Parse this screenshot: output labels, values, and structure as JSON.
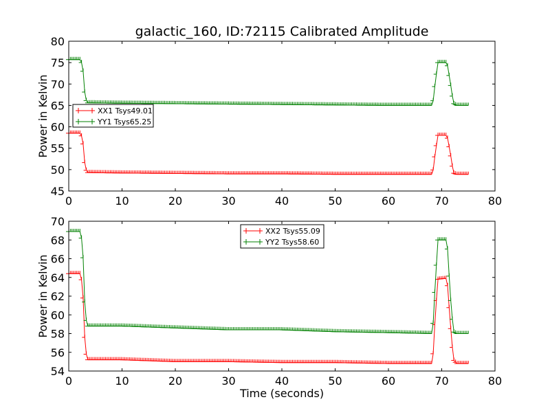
{
  "chart_data": [
    {
      "type": "line",
      "title": "galactic_160, ID:72115 Calibrated Amplitude",
      "xlabel": "",
      "ylabel": "Power in Kelvin",
      "xlim": [
        0,
        80
      ],
      "ylim": [
        45,
        80
      ],
      "xticks": [
        0,
        10,
        20,
        30,
        40,
        50,
        60,
        70,
        80
      ],
      "yticks": [
        45,
        50,
        55,
        60,
        65,
        70,
        75,
        80
      ],
      "legend_position": "center-left",
      "grid": false,
      "series": [
        {
          "name": "XX1 Tsys49.01",
          "color": "#ff0000",
          "points": [
            [
              0,
              58.5
            ],
            [
              2.3,
              58.5
            ],
            [
              2.7,
              56
            ],
            [
              3.1,
              50.2
            ],
            [
              3.6,
              49.3
            ],
            [
              10,
              49.2
            ],
            [
              20,
              49.1
            ],
            [
              30,
              49.0
            ],
            [
              40,
              49.0
            ],
            [
              50,
              48.9
            ],
            [
              60,
              48.9
            ],
            [
              68.3,
              48.9
            ],
            [
              68.8,
              54
            ],
            [
              69.3,
              58
            ],
            [
              71,
              58
            ],
            [
              71.6,
              54
            ],
            [
              72.2,
              49.2
            ],
            [
              72.8,
              48.9
            ],
            [
              75,
              48.9
            ]
          ]
        },
        {
          "name": "YY1 Tsys65.25",
          "color": "#008000",
          "points": [
            [
              0,
              75.7
            ],
            [
              2.3,
              75.7
            ],
            [
              2.7,
              73
            ],
            [
              3.1,
              66.5
            ],
            [
              3.6,
              65.6
            ],
            [
              10,
              65.5
            ],
            [
              20,
              65.4
            ],
            [
              30,
              65.3
            ],
            [
              40,
              65.2
            ],
            [
              50,
              65.1
            ],
            [
              60,
              65.0
            ],
            [
              68.3,
              65.0
            ],
            [
              68.8,
              70.5
            ],
            [
              69.3,
              75
            ],
            [
              71,
              75
            ],
            [
              71.6,
              70.5
            ],
            [
              72.2,
              65.5
            ],
            [
              72.8,
              65.0
            ],
            [
              75,
              65.0
            ]
          ]
        }
      ]
    },
    {
      "type": "line",
      "title": "",
      "xlabel": "Time (seconds)",
      "ylabel": "Power in Kelvin",
      "xlim": [
        0,
        80
      ],
      "ylim": [
        54,
        70
      ],
      "xticks": [
        0,
        10,
        20,
        30,
        40,
        50,
        60,
        70,
        80
      ],
      "yticks": [
        54,
        56,
        58,
        60,
        62,
        64,
        66,
        68,
        70
      ],
      "legend_position": "top-center",
      "grid": false,
      "series": [
        {
          "name": "XX2 Tsys55.09",
          "color": "#ff0000",
          "points": [
            [
              0,
              64.4
            ],
            [
              2.3,
              64.4
            ],
            [
              2.7,
              61.8
            ],
            [
              3.1,
              56.2
            ],
            [
              3.6,
              55.2
            ],
            [
              10,
              55.2
            ],
            [
              20,
              55.0
            ],
            [
              30,
              55.0
            ],
            [
              40,
              54.9
            ],
            [
              50,
              54.9
            ],
            [
              60,
              54.8
            ],
            [
              68.3,
              54.8
            ],
            [
              68.8,
              60
            ],
            [
              69.3,
              63.8
            ],
            [
              71,
              63.9
            ],
            [
              71.6,
              59.2
            ],
            [
              72.2,
              55.2
            ],
            [
              72.8,
              54.8
            ],
            [
              75,
              54.8
            ]
          ]
        },
        {
          "name": "YY2 Tsys58.60",
          "color": "#008000",
          "points": [
            [
              0,
              68.9
            ],
            [
              2.3,
              68.9
            ],
            [
              2.7,
              66.1
            ],
            [
              3.1,
              59.8
            ],
            [
              3.6,
              58.8
            ],
            [
              10,
              58.8
            ],
            [
              20,
              58.6
            ],
            [
              30,
              58.4
            ],
            [
              40,
              58.4
            ],
            [
              50,
              58.2
            ],
            [
              60,
              58.1
            ],
            [
              68.3,
              58.0
            ],
            [
              68.8,
              63.5
            ],
            [
              69.3,
              68.0
            ],
            [
              71,
              68.0
            ],
            [
              71.6,
              62.2
            ],
            [
              72.2,
              58.2
            ],
            [
              72.8,
              58.0
            ],
            [
              75,
              58.0
            ]
          ]
        }
      ]
    }
  ]
}
